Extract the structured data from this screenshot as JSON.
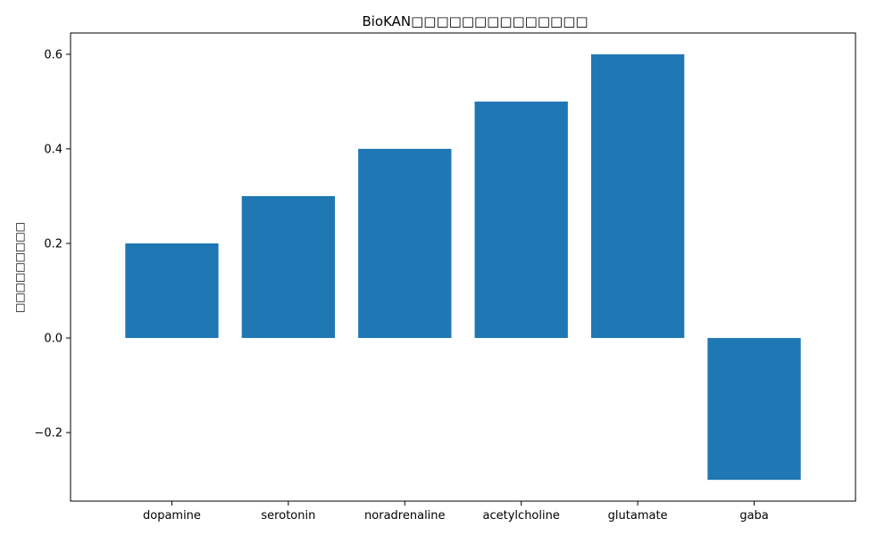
{
  "chart_data": {
    "type": "bar",
    "title": "BioKAN□□□□□□□□□□□□□□",
    "xlabel": "",
    "ylabel": "□□□□□□□□□",
    "categories": [
      "dopamine",
      "serotonin",
      "noradrenaline",
      "acetylcholine",
      "glutamate",
      "gaba"
    ],
    "values": [
      0.2,
      0.3,
      0.4,
      0.5,
      0.6,
      -0.3
    ],
    "ylim": [
      -0.345,
      0.645
    ],
    "yticks": [
      -0.2,
      0.0,
      0.2,
      0.4,
      0.6
    ],
    "ytick_labels": [
      "−0.2",
      "0.0",
      "0.2",
      "0.4",
      "0.6"
    ],
    "bar_color": "#1f77b4",
    "grid": false,
    "legend": "none"
  }
}
